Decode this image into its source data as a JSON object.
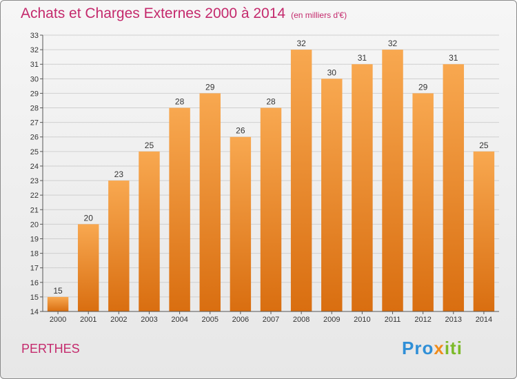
{
  "header": {
    "title": "Achats et Charges Externes 2000 à 2014",
    "unit": "(en milliers d'€)"
  },
  "footer": {
    "town": "PERTHES",
    "logo_part1": "Pro",
    "logo_part2": "x",
    "logo_part3": "iti"
  },
  "colors": {
    "bar_top": "#f8a850",
    "bar_bottom": "#d96e10",
    "title": "#c4296c"
  },
  "chart_data": {
    "type": "bar",
    "categories": [
      "2000",
      "2001",
      "2002",
      "2003",
      "2004",
      "2005",
      "2006",
      "2007",
      "2008",
      "2009",
      "2010",
      "2011",
      "2012",
      "2013",
      "2014"
    ],
    "values": [
      15,
      20,
      23,
      25,
      28,
      29,
      26,
      28,
      32,
      30,
      31,
      32,
      29,
      31,
      25
    ],
    "title": "Achats et Charges Externes 2000 à 2014",
    "ylim": [
      14,
      33
    ],
    "yticks": [
      14,
      15,
      16,
      17,
      18,
      19,
      20,
      21,
      22,
      23,
      24,
      25,
      26,
      27,
      28,
      29,
      30,
      31,
      32,
      33
    ],
    "grid": true,
    "data_labels": true
  }
}
